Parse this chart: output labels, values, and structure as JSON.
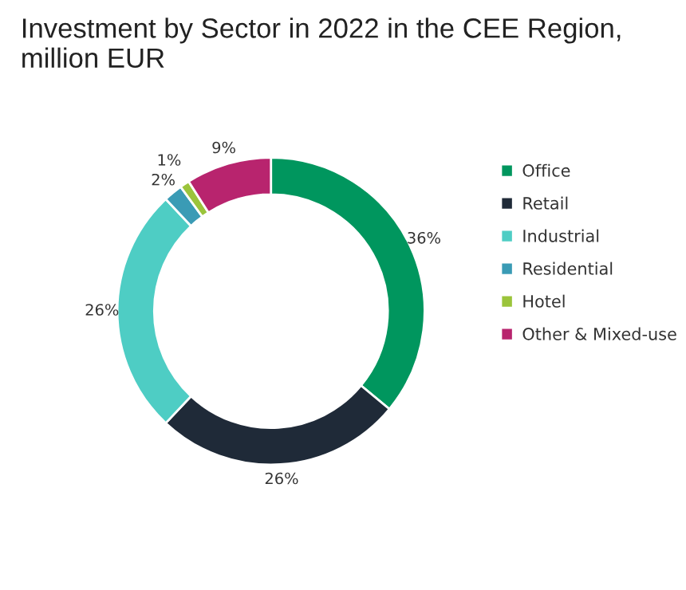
{
  "chart_data": {
    "type": "donut",
    "title": "Investment by Sector in 2022 in the CEE Region,\nmillion EUR",
    "categories": [
      "Office",
      "Retail",
      "Industrial",
      "Residential",
      "Hotel",
      "Other & Mixed-use"
    ],
    "values": [
      36,
      26,
      26,
      2,
      1,
      9
    ],
    "value_labels": [
      "36%",
      "26%",
      "26%",
      "2%",
      "1%",
      "9%"
    ],
    "colors": [
      "#00965e",
      "#1f2a38",
      "#4ecdc4",
      "#3a9bb5",
      "#9bc43b",
      "#b8246e"
    ],
    "legend": "right"
  }
}
